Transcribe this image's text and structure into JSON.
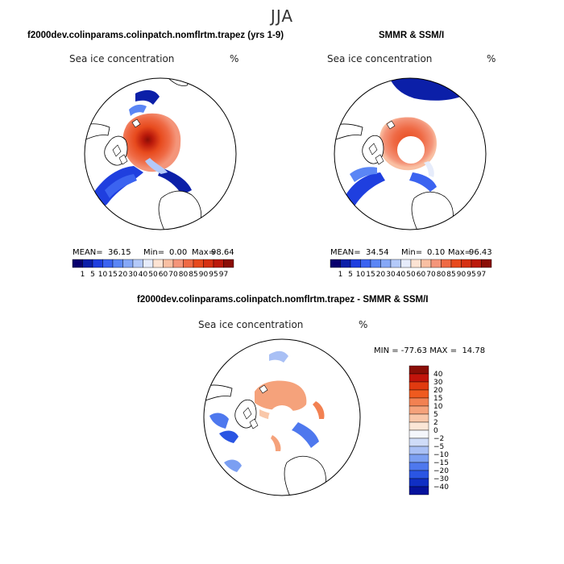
{
  "season": "JJA",
  "colors": {
    "ice_scale": [
      "#08006e",
      "#0b1fa8",
      "#1f3fdf",
      "#3b63f0",
      "#5b86f5",
      "#86a8f7",
      "#b3c9f9",
      "#e6ecfb",
      "#fde3d3",
      "#f9bfa2",
      "#f4957a",
      "#ef6a45",
      "#e74a1d",
      "#d63112",
      "#bb1a0b",
      "#8a0e06"
    ],
    "diff_scale": [
      "#8a0e06",
      "#c2140b",
      "#e13a10",
      "#ef5a1f",
      "#f28152",
      "#f5a27b",
      "#f9c7a9",
      "#fbe6d6",
      "#f4f6fb",
      "#cfdcf8",
      "#a9c0f5",
      "#7b9ff2",
      "#4e78ee",
      "#2a55e3",
      "#102fc4",
      "#06129c"
    ],
    "land": "#ffffff",
    "coast": "#000000"
  },
  "panels": {
    "model": {
      "title": "f2000dev.colinparams.colinpatch.nomflrtm.trapez (yrs 1-9)",
      "field_label": "Sea ice concentration",
      "units": "%",
      "mean_label": "MEAN=",
      "mean": "36.15",
      "min_label": "Min=",
      "min": "0.00",
      "max_label": "Max=",
      "max": "98.64"
    },
    "obs": {
      "title": "SMMR & SSM/I",
      "field_label": "Sea ice concentration",
      "units": "%",
      "mean_label": "MEAN=",
      "mean": "34.54",
      "min_label": "Min=",
      "min": "0.10",
      "max_label": "Max=",
      "max": "96.43"
    },
    "diff": {
      "title": "f2000dev.colinparams.colinpatch.nomflrtm.trapez - SMMR & SSM/I",
      "field_label": "Sea ice concentration",
      "units": "%",
      "minmax_text": "MIN = -77.63 MAX =  14.78"
    }
  },
  "chart_data": [
    {
      "type": "heatmap",
      "projection": "north-polar-stereographic",
      "title": "f2000dev.colinparams.colinpatch.nomflrtm.trapez (yrs 1-9)",
      "variable": "Sea ice concentration",
      "units": "%",
      "mean": 36.15,
      "min": 0.0,
      "max": 98.64,
      "colorbar_levels": [
        "1",
        "5",
        "10",
        "15",
        "20",
        "30",
        "40",
        "50",
        "60",
        "70",
        "80",
        "85",
        "90",
        "95",
        "97"
      ]
    },
    {
      "type": "heatmap",
      "projection": "north-polar-stereographic",
      "title": "SMMR & SSM/I",
      "variable": "Sea ice concentration",
      "units": "%",
      "mean": 34.54,
      "min": 0.1,
      "max": 96.43,
      "colorbar_levels": [
        "1",
        "5",
        "10",
        "15",
        "20",
        "30",
        "40",
        "50",
        "60",
        "70",
        "80",
        "85",
        "90",
        "95",
        "97"
      ]
    },
    {
      "type": "heatmap",
      "projection": "north-polar-stereographic",
      "title": "f2000dev.colinparams.colinpatch.nomflrtm.trapez - SMMR & SSM/I",
      "variable": "Sea ice concentration",
      "units": "%",
      "min": -77.63,
      "max": 14.78,
      "colorbar_levels": [
        "40",
        "30",
        "20",
        "15",
        "10",
        "5",
        "2",
        "0",
        "−2",
        "−5",
        "−10",
        "−15",
        "−20",
        "−30",
        "−40"
      ]
    }
  ]
}
